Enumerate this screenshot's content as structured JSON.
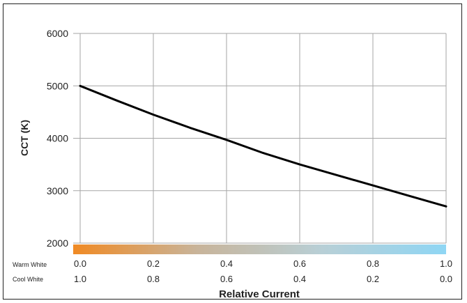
{
  "chart_data": {
    "type": "line",
    "ylabel": "CCT (K)",
    "xlabel": "Relative Current",
    "ylim": [
      2000,
      6000
    ],
    "y_ticks": [
      "2000",
      "3000",
      "4000",
      "5000",
      "6000"
    ],
    "xlim": [
      0,
      1
    ],
    "grid": true,
    "series": [
      {
        "x": [
          0.0,
          0.1,
          0.2,
          0.3,
          0.4,
          0.5,
          0.6,
          0.7,
          0.8,
          0.9,
          1.0
        ],
        "y": [
          5000,
          4720,
          4450,
          4200,
          3970,
          3720,
          3500,
          3300,
          3100,
          2900,
          2700
        ]
      }
    ],
    "axis_rows": [
      {
        "label": "Warm White",
        "ticks": [
          "0.0",
          "0.2",
          "0.4",
          "0.6",
          "0.8",
          "1.0"
        ]
      },
      {
        "label": "Cool White",
        "ticks": [
          "1.0",
          "0.8",
          "0.6",
          "0.4",
          "0.2",
          "0.0"
        ]
      }
    ],
    "gradient_colors": [
      "#f08a24",
      "#c8b49a",
      "#b8cfd6",
      "#8fd6f4"
    ],
    "line_color": "#000000",
    "grid_color": "#a6a6a6"
  }
}
